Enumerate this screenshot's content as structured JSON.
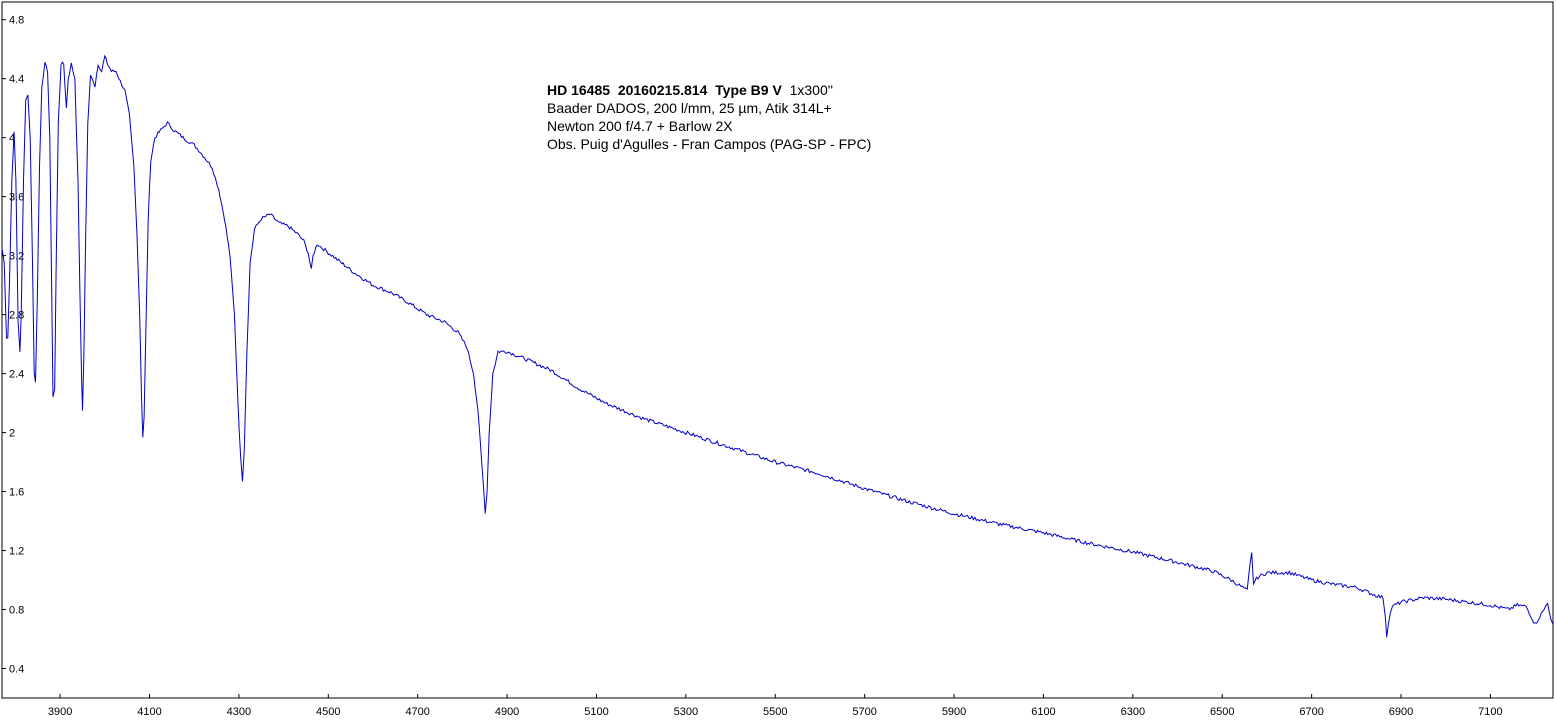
{
  "chart_data": {
    "type": "line",
    "info": {
      "object": "HD 16485",
      "date": "20160215.814",
      "type": "Type B9 V",
      "exposure": "1x300''",
      "instrument": "Baader DADOS, 200 l/mm, 25 µm, Atik 314L+",
      "telescope": "Newton 200 f/4.7 + Barlow 2X",
      "observer": "Obs. Puig d'Agulles - Fran Campos (PAG-SP - FPC)"
    },
    "xlim": [
      3770,
      7240
    ],
    "ylim": [
      0.2,
      4.92
    ],
    "x_ticks": [
      3900,
      4100,
      4300,
      4500,
      4700,
      4900,
      5100,
      5300,
      5500,
      5700,
      5900,
      6100,
      6300,
      6500,
      6700,
      6900,
      7100
    ],
    "y_ticks": [
      "0.4",
      "0.8",
      "1.2",
      "1.6",
      "2",
      "2.4",
      "2.8",
      "3.2",
      "3.6",
      "4",
      "4.4",
      "4.8"
    ],
    "grid": false,
    "line_color": "#0000cc",
    "series": [
      {
        "values": [
          [
            3770,
            3.25
          ],
          [
            3775,
            3.15
          ],
          [
            3780,
            2.65
          ],
          [
            3783,
            2.65
          ],
          [
            3787,
            3.05
          ],
          [
            3792,
            3.7
          ],
          [
            3797,
            4.05
          ],
          [
            3801,
            3.7
          ],
          [
            3806,
            2.75
          ],
          [
            3810,
            2.55
          ],
          [
            3813,
            2.8
          ],
          [
            3818,
            3.7
          ],
          [
            3823,
            4.25
          ],
          [
            3828,
            4.3
          ],
          [
            3833,
            4.0
          ],
          [
            3838,
            3.2
          ],
          [
            3842,
            2.4
          ],
          [
            3845,
            2.35
          ],
          [
            3849,
            2.9
          ],
          [
            3854,
            3.8
          ],
          [
            3859,
            4.35
          ],
          [
            3866,
            4.5
          ],
          [
            3872,
            4.45
          ],
          [
            3877,
            4.0
          ],
          [
            3881,
            3.0
          ],
          [
            3884,
            2.25
          ],
          [
            3888,
            2.3
          ],
          [
            3891,
            3.1
          ],
          [
            3896,
            4.1
          ],
          [
            3902,
            4.5
          ],
          [
            3908,
            4.5
          ],
          [
            3914,
            4.2
          ],
          [
            3918,
            4.4
          ],
          [
            3925,
            4.5
          ],
          [
            3933,
            4.4
          ],
          [
            3940,
            3.7
          ],
          [
            3944,
            3.0
          ],
          [
            3948,
            2.35
          ],
          [
            3950,
            2.15
          ],
          [
            3953,
            2.5
          ],
          [
            3957,
            3.3
          ],
          [
            3962,
            4.1
          ],
          [
            3968,
            4.42
          ],
          [
            3973,
            4.4
          ],
          [
            3978,
            4.35
          ],
          [
            3985,
            4.5
          ],
          [
            3993,
            4.45
          ],
          [
            4000,
            4.55
          ],
          [
            4006,
            4.5
          ],
          [
            4015,
            4.45
          ],
          [
            4025,
            4.45
          ],
          [
            4035,
            4.38
          ],
          [
            4045,
            4.32
          ],
          [
            4055,
            4.15
          ],
          [
            4065,
            3.8
          ],
          [
            4072,
            3.35
          ],
          [
            4078,
            2.8
          ],
          [
            4082,
            2.25
          ],
          [
            4085,
            1.97
          ],
          [
            4088,
            2.1
          ],
          [
            4092,
            2.7
          ],
          [
            4097,
            3.45
          ],
          [
            4103,
            3.85
          ],
          [
            4112,
            4.0
          ],
          [
            4125,
            4.05
          ],
          [
            4140,
            4.1
          ],
          [
            4155,
            4.05
          ],
          [
            4175,
            4.0
          ],
          [
            4200,
            3.95
          ],
          [
            4220,
            3.88
          ],
          [
            4240,
            3.8
          ],
          [
            4255,
            3.65
          ],
          [
            4268,
            3.45
          ],
          [
            4280,
            3.2
          ],
          [
            4290,
            2.8
          ],
          [
            4298,
            2.2
          ],
          [
            4304,
            1.82
          ],
          [
            4308,
            1.68
          ],
          [
            4312,
            1.9
          ],
          [
            4318,
            2.55
          ],
          [
            4325,
            3.15
          ],
          [
            4335,
            3.38
          ],
          [
            4350,
            3.45
          ],
          [
            4370,
            3.48
          ],
          [
            4390,
            3.42
          ],
          [
            4410,
            3.4
          ],
          [
            4430,
            3.35
          ],
          [
            4445,
            3.3
          ],
          [
            4455,
            3.22
          ],
          [
            4462,
            3.1
          ],
          [
            4466,
            3.2
          ],
          [
            4475,
            3.28
          ],
          [
            4500,
            3.22
          ],
          [
            4530,
            3.15
          ],
          [
            4560,
            3.08
          ],
          [
            4600,
            3.0
          ],
          [
            4640,
            2.95
          ],
          [
            4680,
            2.88
          ],
          [
            4720,
            2.8
          ],
          [
            4760,
            2.75
          ],
          [
            4790,
            2.68
          ],
          [
            4810,
            2.58
          ],
          [
            4825,
            2.4
          ],
          [
            4835,
            2.15
          ],
          [
            4843,
            1.8
          ],
          [
            4848,
            1.6
          ],
          [
            4851,
            1.45
          ],
          [
            4855,
            1.6
          ],
          [
            4860,
            2.0
          ],
          [
            4868,
            2.4
          ],
          [
            4880,
            2.55
          ],
          [
            4900,
            2.55
          ],
          [
            4940,
            2.5
          ],
          [
            5000,
            2.42
          ],
          [
            5060,
            2.3
          ],
          [
            5120,
            2.2
          ],
          [
            5200,
            2.1
          ],
          [
            5300,
            2.0
          ],
          [
            5400,
            1.9
          ],
          [
            5500,
            1.8
          ],
          [
            5600,
            1.72
          ],
          [
            5700,
            1.62
          ],
          [
            5800,
            1.53
          ],
          [
            5900,
            1.45
          ],
          [
            6000,
            1.38
          ],
          [
            6100,
            1.32
          ],
          [
            6200,
            1.25
          ],
          [
            6300,
            1.19
          ],
          [
            6400,
            1.12
          ],
          [
            6480,
            1.06
          ],
          [
            6520,
            1.0
          ],
          [
            6545,
            0.95
          ],
          [
            6556,
            0.93
          ],
          [
            6562,
            1.1
          ],
          [
            6566,
            1.18
          ],
          [
            6570,
            0.98
          ],
          [
            6580,
            1.02
          ],
          [
            6600,
            1.05
          ],
          [
            6650,
            1.05
          ],
          [
            6700,
            1.0
          ],
          [
            6750,
            0.97
          ],
          [
            6800,
            0.95
          ],
          [
            6840,
            0.9
          ],
          [
            6860,
            0.88
          ],
          [
            6865,
            0.75
          ],
          [
            6868,
            0.62
          ],
          [
            6872,
            0.72
          ],
          [
            6880,
            0.82
          ],
          [
            6900,
            0.85
          ],
          [
            6950,
            0.88
          ],
          [
            7000,
            0.87
          ],
          [
            7050,
            0.85
          ],
          [
            7100,
            0.83
          ],
          [
            7140,
            0.8
          ],
          [
            7160,
            0.83
          ],
          [
            7180,
            0.82
          ],
          [
            7200,
            0.7
          ],
          [
            7210,
            0.75
          ],
          [
            7220,
            0.8
          ],
          [
            7228,
            0.85
          ],
          [
            7236,
            0.72
          ],
          [
            7240,
            0.7
          ]
        ]
      }
    ]
  }
}
